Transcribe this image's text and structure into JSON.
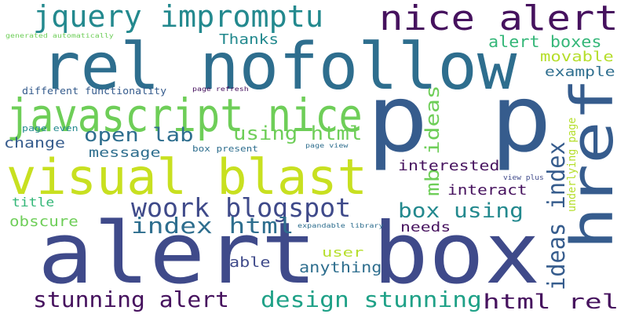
{
  "palette": {
    "dark_purple": "#46125e",
    "indigo": "#3f4a8a",
    "blue": "#365c8d",
    "slate": "#2e6e8e",
    "teal": "#23898e",
    "green_teal": "#1fa187",
    "green": "#35b779",
    "light_green": "#6ece58",
    "lime": "#b5de2b",
    "yellow": "#c8e020"
  },
  "words": [
    {
      "text": "alert box",
      "color": "#3f4a8a"
    },
    {
      "text": "p p",
      "color": "#365c8d"
    },
    {
      "text": "rel nofollow",
      "color": "#2e6e8e"
    },
    {
      "text": "visual blast",
      "color": "#c8e020"
    },
    {
      "text": "href",
      "color": "#365c8d"
    },
    {
      "text": "javascript nice",
      "color": "#6ece58"
    },
    {
      "text": "nice alert",
      "color": "#46125e"
    },
    {
      "text": "jquery impromptu",
      "color": "#23898e"
    },
    {
      "text": "woork blogspot",
      "color": "#3f4a8a"
    },
    {
      "text": "stunning alert",
      "color": "#46125e"
    },
    {
      "text": "design stunning",
      "color": "#1fa187"
    },
    {
      "text": "index html",
      "color": "#2e6e8e"
    },
    {
      "text": "ideas index",
      "color": "#365c8d"
    },
    {
      "text": "box using",
      "color": "#23898e"
    },
    {
      "text": "html rel",
      "color": "#46125e"
    },
    {
      "text": "using html",
      "color": "#6ece58"
    },
    {
      "text": "open lab",
      "color": "#2e6e8e"
    },
    {
      "text": "mb ideas",
      "color": "#6ece58"
    },
    {
      "text": "interested",
      "color": "#46125e"
    },
    {
      "text": "alert boxes",
      "color": "#35b779"
    },
    {
      "text": "movable",
      "color": "#b5de2b"
    },
    {
      "text": "example",
      "color": "#2e6e8e"
    },
    {
      "text": "Thanks",
      "color": "#23898e"
    },
    {
      "text": "change",
      "color": "#365c8d"
    },
    {
      "text": "message",
      "color": "#2e6e8e"
    },
    {
      "text": "title",
      "color": "#35b779"
    },
    {
      "text": "obscure",
      "color": "#6ece58"
    },
    {
      "text": "interact",
      "color": "#46125e"
    },
    {
      "text": "needs",
      "color": "#46125e"
    },
    {
      "text": "user",
      "color": "#b5de2b"
    },
    {
      "text": "able",
      "color": "#3f4a8a"
    },
    {
      "text": "anything",
      "color": "#2e6e8e"
    },
    {
      "text": "different functionality",
      "color": "#365c8d"
    },
    {
      "text": "generated automatically",
      "color": "#6ece58"
    },
    {
      "text": "page refresh",
      "color": "#46125e"
    },
    {
      "text": "page even",
      "color": "#23898e"
    },
    {
      "text": "box present",
      "color": "#2e6e8e"
    },
    {
      "text": "page view",
      "color": "#2e6e8e"
    },
    {
      "text": "view plus",
      "color": "#3f4a8a"
    },
    {
      "text": "underlying page",
      "color": "#b5de2b"
    },
    {
      "text": "expandable library",
      "color": "#2e6e8e"
    }
  ]
}
